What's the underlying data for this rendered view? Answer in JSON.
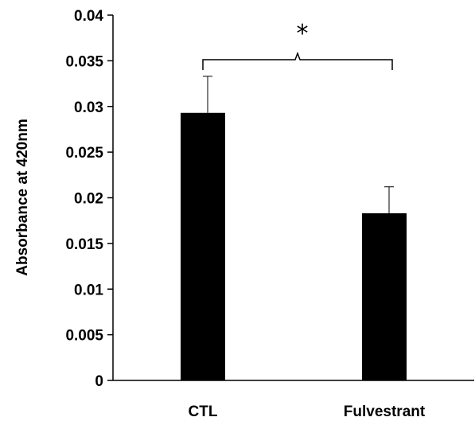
{
  "chart_data": {
    "type": "bar",
    "title": "",
    "xlabel": "",
    "ylabel": "Absorbance at 420nm",
    "ylim": [
      0,
      0.04
    ],
    "yticks": [
      "0",
      "0.005",
      "0.01",
      "0.015",
      "0.02",
      "0.025",
      "0.03",
      "0.035",
      "0.04"
    ],
    "categories": [
      "CTL",
      "Fulvestrant"
    ],
    "values": [
      0.0293,
      0.0183
    ],
    "errors": [
      0.004,
      0.0029
    ],
    "bar_color": "#000000",
    "grid": false,
    "legend": "none",
    "annotation": {
      "text": "*",
      "between": [
        "CTL",
        "Fulvestrant"
      ],
      "shape": "curly-brace"
    }
  }
}
